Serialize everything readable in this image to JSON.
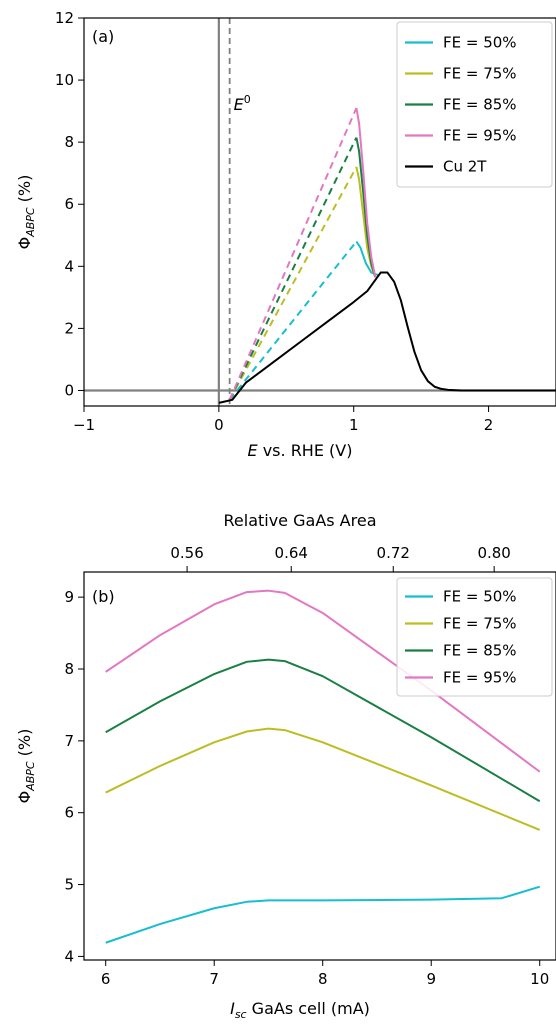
{
  "chart_data": [
    {
      "type": "line",
      "panel_label": "(a)",
      "xlabel": "E",
      "xlabel_suffix": " vs. RHE (V)",
      "ylabel_base": "Φ",
      "ylabel_sub": "ABPC",
      "ylabel_suffix": " (%)",
      "xlim": [
        -1,
        2.5
      ],
      "ylim": [
        -0.5,
        12
      ],
      "xticks": [
        -1,
        0,
        1,
        2
      ],
      "xtick_labels": [
        "−1",
        "0",
        "1",
        "2"
      ],
      "yticks": [
        0,
        2,
        4,
        6,
        8,
        10,
        12
      ],
      "ytick_labels": [
        "0",
        "2",
        "4",
        "6",
        "8",
        "10",
        "12"
      ],
      "reference_lines": {
        "vertical_solid_x": 0,
        "horizontal_solid_y": 0,
        "vertical_dashed_x": 0.08,
        "vertical_dashed_label_base": "E",
        "vertical_dashed_label_sup": "0",
        "color": "#808080"
      },
      "legend_position": "top-right",
      "series": [
        {
          "name": "FE = 50%",
          "color": "#17becf",
          "dashed": [
            [
              0.08,
              -0.3
            ],
            [
              1.02,
              4.8
            ]
          ],
          "solid": [
            [
              1.02,
              4.8
            ],
            [
              1.05,
              4.6
            ],
            [
              1.09,
              4.1
            ],
            [
              1.13,
              3.8
            ],
            [
              1.18,
              3.72
            ]
          ]
        },
        {
          "name": "FE = 75%",
          "color": "#bcbd22",
          "dashed": [
            [
              0.08,
              -0.3
            ],
            [
              1.02,
              7.2
            ]
          ],
          "solid": [
            [
              1.02,
              7.2
            ],
            [
              1.04,
              6.8
            ],
            [
              1.07,
              5.7
            ],
            [
              1.1,
              4.6
            ],
            [
              1.13,
              4.0
            ],
            [
              1.16,
              3.65
            ]
          ]
        },
        {
          "name": "FE = 85%",
          "color": "#1a7f45",
          "dashed": [
            [
              0.08,
              -0.3
            ],
            [
              1.02,
              8.15
            ]
          ],
          "solid": [
            [
              1.02,
              8.15
            ],
            [
              1.04,
              7.7
            ],
            [
              1.07,
              6.4
            ],
            [
              1.1,
              5.0
            ],
            [
              1.13,
              4.1
            ],
            [
              1.16,
              3.65
            ]
          ]
        },
        {
          "name": "FE = 95%",
          "color": "#e377c2",
          "dashed": [
            [
              0.08,
              -0.3
            ],
            [
              1.02,
              9.1
            ]
          ],
          "solid": [
            [
              1.02,
              9.1
            ],
            [
              1.04,
              8.6
            ],
            [
              1.07,
              7.1
            ],
            [
              1.1,
              5.4
            ],
            [
              1.13,
              4.3
            ],
            [
              1.16,
              3.65
            ]
          ]
        },
        {
          "name": "Cu 2T",
          "color": "#000000",
          "solid": [
            [
              0.0,
              -0.4
            ],
            [
              0.1,
              -0.3
            ],
            [
              0.2,
              0.25
            ],
            [
              0.4,
              0.9
            ],
            [
              0.6,
              1.55
            ],
            [
              0.8,
              2.2
            ],
            [
              1.0,
              2.85
            ],
            [
              1.1,
              3.2
            ],
            [
              1.2,
              3.8
            ],
            [
              1.25,
              3.8
            ],
            [
              1.3,
              3.5
            ],
            [
              1.35,
              2.9
            ],
            [
              1.4,
              2.05
            ],
            [
              1.45,
              1.25
            ],
            [
              1.5,
              0.65
            ],
            [
              1.55,
              0.3
            ],
            [
              1.6,
              0.12
            ],
            [
              1.65,
              0.05
            ],
            [
              1.7,
              0.02
            ],
            [
              1.8,
              0.0
            ],
            [
              2.5,
              0.0
            ]
          ]
        }
      ]
    },
    {
      "type": "line",
      "panel_label": "(b)",
      "xlabel": "I",
      "xlabel_sub": "sc",
      "xlabel_suffix": " GaAs cell (mA)",
      "ylabel_base": "Φ",
      "ylabel_sub": "ABPC",
      "ylabel_suffix": " (%)",
      "top_xlabel": "Relative GaAs Area",
      "top_xticks_at": [
        6.75,
        7.71,
        8.65,
        9.58
      ],
      "top_xtick_labels": [
        "0.56",
        "0.64",
        "0.72",
        "0.80"
      ],
      "xlim": [
        5.8,
        10.15
      ],
      "ylim": [
        3.95,
        9.35
      ],
      "xticks": [
        6,
        7,
        8,
        9,
        10
      ],
      "xtick_labels": [
        "6",
        "7",
        "8",
        "9",
        "10"
      ],
      "yticks": [
        4,
        5,
        6,
        7,
        8,
        9
      ],
      "ytick_labels": [
        "4",
        "5",
        "6",
        "7",
        "8",
        "9"
      ],
      "legend_position": "top-right",
      "series": [
        {
          "name": "FE = 50%",
          "color": "#17becf",
          "x": [
            6.0,
            6.5,
            7.0,
            7.3,
            7.5,
            8.0,
            9.0,
            9.65,
            10.0
          ],
          "y": [
            4.19,
            4.45,
            4.67,
            4.76,
            4.78,
            4.78,
            4.79,
            4.81,
            4.97
          ]
        },
        {
          "name": "FE = 75%",
          "color": "#bcbd22",
          "x": [
            6.0,
            6.5,
            7.0,
            7.3,
            7.5,
            7.65,
            8.0,
            9.0,
            10.0
          ],
          "y": [
            6.28,
            6.65,
            6.98,
            7.13,
            7.17,
            7.15,
            6.98,
            6.38,
            5.76
          ]
        },
        {
          "name": "FE = 85%",
          "color": "#1a7f45",
          "x": [
            6.0,
            6.5,
            7.0,
            7.3,
            7.5,
            7.65,
            8.0,
            9.0,
            10.0
          ],
          "y": [
            7.12,
            7.55,
            7.93,
            8.1,
            8.13,
            8.11,
            7.9,
            7.05,
            6.16
          ]
        },
        {
          "name": "FE = 95%",
          "color": "#e377c2",
          "x": [
            6.0,
            6.5,
            7.0,
            7.3,
            7.5,
            7.65,
            8.0,
            9.0,
            10.0
          ],
          "y": [
            7.96,
            8.47,
            8.9,
            9.07,
            9.09,
            9.06,
            8.78,
            7.7,
            6.57
          ]
        }
      ]
    }
  ]
}
